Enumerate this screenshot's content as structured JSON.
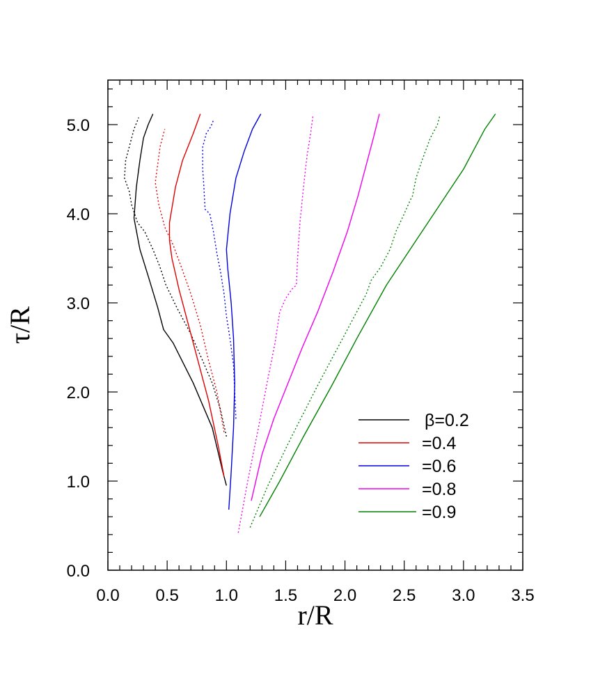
{
  "chart_data": {
    "type": "line",
    "xlabel": "r/R",
    "ylabel": "τ/R",
    "xlim": [
      0,
      3.5
    ],
    "ylim": [
      0,
      5.5
    ],
    "xticks": [
      "0.0",
      "0.5",
      "1.0",
      "1.5",
      "2.0",
      "2.5",
      "3.0",
      "3.5"
    ],
    "yticks": [
      "0.0",
      "1.0",
      "2.0",
      "3.0",
      "4.0",
      "5.0"
    ],
    "xtick_values": [
      0,
      0.5,
      1.0,
      1.5,
      2.0,
      2.5,
      3.0,
      3.5
    ],
    "ytick_values": [
      0,
      1,
      2,
      3,
      4,
      5
    ],
    "grid": false,
    "legend_position": "lower-right",
    "series": [
      {
        "name": "β=0.2",
        "color": "#000000",
        "style": "solid",
        "x": [
          1.0,
          0.97,
          0.88,
          0.72,
          0.55,
          0.47,
          0.42,
          0.34,
          0.27,
          0.22,
          0.24,
          0.27,
          0.3,
          0.34,
          0.38
        ],
        "y": [
          0.95,
          1.1,
          1.6,
          2.1,
          2.55,
          2.7,
          2.95,
          3.3,
          3.6,
          3.95,
          4.3,
          4.6,
          4.85,
          5.0,
          5.12
        ]
      },
      {
        "name": "β=0.2",
        "color": "#000000",
        "style": "dotted",
        "x": [
          1.0,
          0.95,
          0.88,
          0.8,
          0.7,
          0.58,
          0.49,
          0.44,
          0.38,
          0.31,
          0.25,
          0.2,
          0.18,
          0.14,
          0.15,
          0.19,
          0.22,
          0.26
        ],
        "y": [
          1.5,
          1.8,
          2.1,
          2.35,
          2.65,
          2.95,
          3.2,
          3.4,
          3.6,
          3.8,
          3.9,
          4.1,
          4.25,
          4.4,
          4.6,
          4.8,
          4.95,
          5.08
        ]
      },
      {
        "name": "=0.4",
        "color": "#dd0000",
        "style": "solid",
        "x": [
          0.98,
          0.93,
          0.85,
          0.76,
          0.67,
          0.6,
          0.54,
          0.52,
          0.52,
          0.57,
          0.63,
          0.72,
          0.78
        ],
        "y": [
          1.05,
          1.4,
          1.9,
          2.35,
          2.8,
          3.15,
          3.5,
          3.7,
          3.9,
          4.3,
          4.6,
          4.9,
          5.12
        ]
      },
      {
        "name": "=0.4",
        "color": "#dd0000",
        "style": "dotted",
        "x": [
          0.98,
          0.92,
          0.85,
          0.78,
          0.7,
          0.62,
          0.55,
          0.48,
          0.43,
          0.4,
          0.42,
          0.44,
          0.47,
          0.48
        ],
        "y": [
          1.55,
          2.0,
          2.35,
          2.75,
          3.1,
          3.4,
          3.65,
          3.85,
          4.1,
          4.35,
          4.55,
          4.75,
          4.9,
          4.95
        ]
      },
      {
        "name": "=0.6",
        "color": "#0000dd",
        "style": "solid",
        "x": [
          1.02,
          1.04,
          1.06,
          1.07,
          1.06,
          1.04,
          1.01,
          1.0,
          1.03,
          1.08,
          1.15,
          1.22,
          1.29
        ],
        "y": [
          0.68,
          1.1,
          1.6,
          2.1,
          2.6,
          3.0,
          3.4,
          3.6,
          4.0,
          4.4,
          4.7,
          4.95,
          5.12
        ]
      },
      {
        "name": "=0.6",
        "color": "#0000dd",
        "style": "dotted",
        "x": [
          1.08,
          1.07,
          1.06,
          1.03,
          1.0,
          0.98,
          0.95,
          0.92,
          0.89,
          0.86,
          0.82,
          0.81,
          0.8,
          0.8,
          0.83,
          0.87,
          0.89
        ],
        "y": [
          1.7,
          2.0,
          2.3,
          2.6,
          2.85,
          3.1,
          3.35,
          3.55,
          3.8,
          4.0,
          4.05,
          4.3,
          4.5,
          4.75,
          4.9,
          4.98,
          5.05
        ]
      },
      {
        "name": "=0.8",
        "color": "#ee00ee",
        "style": "solid",
        "x": [
          1.21,
          1.3,
          1.4,
          1.52,
          1.64,
          1.77,
          1.9,
          2.02,
          2.11,
          2.18,
          2.24,
          2.29
        ],
        "y": [
          0.78,
          1.3,
          1.7,
          2.1,
          2.5,
          2.9,
          3.35,
          3.8,
          4.2,
          4.55,
          4.85,
          5.12
        ]
      },
      {
        "name": "=0.8",
        "color": "#ee00ee",
        "style": "dotted",
        "x": [
          1.1,
          1.18,
          1.27,
          1.35,
          1.41,
          1.45,
          1.5,
          1.55,
          1.59,
          1.6,
          1.62,
          1.65,
          1.68,
          1.71,
          1.72,
          1.73
        ],
        "y": [
          0.42,
          1.0,
          1.6,
          2.15,
          2.55,
          2.9,
          3.05,
          3.15,
          3.2,
          3.5,
          3.9,
          4.3,
          4.65,
          4.9,
          5.0,
          5.1
        ]
      },
      {
        "name": "=0.9",
        "color": "#008000",
        "style": "solid",
        "x": [
          1.28,
          1.45,
          1.65,
          1.88,
          2.1,
          2.35,
          2.6,
          2.85,
          3.0,
          3.08,
          3.18,
          3.27
        ],
        "y": [
          0.6,
          1.0,
          1.5,
          2.05,
          2.6,
          3.2,
          3.7,
          4.2,
          4.5,
          4.7,
          4.95,
          5.12
        ]
      },
      {
        "name": "=0.9",
        "color": "#008000",
        "style": "dotted",
        "x": [
          1.2,
          1.35,
          1.55,
          1.78,
          1.98,
          2.18,
          2.22,
          2.3,
          2.38,
          2.43,
          2.5,
          2.55,
          2.57,
          2.6,
          2.65,
          2.72,
          2.78,
          2.8
        ],
        "y": [
          0.48,
          0.95,
          1.5,
          2.1,
          2.6,
          3.1,
          3.25,
          3.4,
          3.6,
          3.8,
          4.0,
          4.15,
          4.2,
          4.4,
          4.6,
          4.85,
          5.0,
          5.1
        ]
      }
    ],
    "legend": [
      {
        "label": "β=0.2",
        "color": "#000000"
      },
      {
        "label": "=0.4",
        "color": "#dd0000"
      },
      {
        "label": "=0.6",
        "color": "#0000dd"
      },
      {
        "label": "=0.8",
        "color": "#ee00ee"
      },
      {
        "label": "=0.9",
        "color": "#008000"
      }
    ]
  }
}
